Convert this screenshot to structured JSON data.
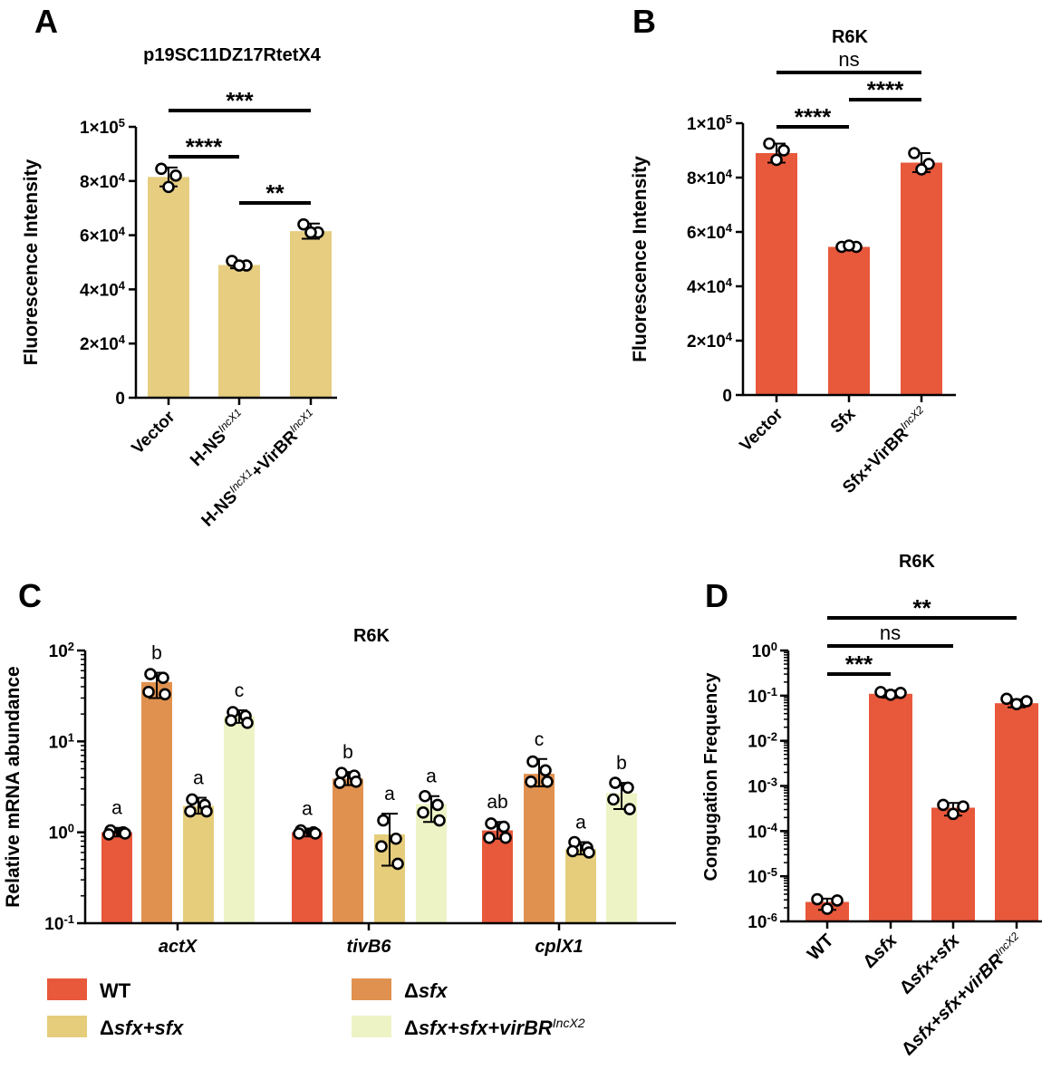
{
  "colors": {
    "panel_a_bar": "#e7cd80",
    "red": "#e8583b",
    "orange": "#e0914f",
    "yellow": "#e6cd7c",
    "light_green": "#eef3c6"
  },
  "chart_data": [
    {
      "panel": "A",
      "type": "bar",
      "title": "p19SC11DZ17RtetX4",
      "ylabel": "Fluorescence Intensity",
      "ylim": [
        0,
        100000
      ],
      "yticks": [
        {
          "v": 0,
          "label": "0"
        },
        {
          "v": 20000,
          "base": "2×10",
          "exp": "4"
        },
        {
          "v": 40000,
          "base": "4×10",
          "exp": "4"
        },
        {
          "v": 60000,
          "base": "6×10",
          "exp": "4"
        },
        {
          "v": 80000,
          "base": "8×10",
          "exp": "4"
        },
        {
          "v": 100000,
          "base": "1×10",
          "exp": "5"
        }
      ],
      "categories": [
        {
          "parts": [
            {
              "t": "Vector"
            }
          ]
        },
        {
          "parts": [
            {
              "t": "H-NS"
            },
            {
              "t": "IncX1",
              "sup": true
            }
          ]
        },
        {
          "parts": [
            {
              "t": "H-NS"
            },
            {
              "t": "IncX1",
              "sup": true
            },
            {
              "t": "+VirBR"
            },
            {
              "t": "IncX1",
              "sup": true
            }
          ]
        }
      ],
      "values": [
        81500,
        49000,
        61500
      ],
      "errors": [
        3500,
        1200,
        2800
      ],
      "points": [
        [
          84500,
          82000,
          77800
        ],
        [
          50500,
          48800,
          48800
        ],
        [
          64000,
          61000,
          61000
        ]
      ],
      "significance": [
        {
          "from": 0,
          "to": 2,
          "label": "***",
          "level": 0
        },
        {
          "from": 0,
          "to": 1,
          "label": "****",
          "level": 1
        },
        {
          "from": 1,
          "to": 2,
          "label": "**",
          "level": 2
        }
      ]
    },
    {
      "panel": "B",
      "type": "bar",
      "title": "R6K",
      "ylabel": "Fluorescence Intensity",
      "ylim": [
        0,
        100000
      ],
      "yticks": [
        {
          "v": 0,
          "label": "0"
        },
        {
          "v": 20000,
          "base": "2×10",
          "exp": "4"
        },
        {
          "v": 40000,
          "base": "4×10",
          "exp": "4"
        },
        {
          "v": 60000,
          "base": "6×10",
          "exp": "4"
        },
        {
          "v": 80000,
          "base": "8×10",
          "exp": "4"
        },
        {
          "v": 100000,
          "base": "1×10",
          "exp": "5"
        }
      ],
      "categories": [
        {
          "parts": [
            {
              "t": "Vector"
            }
          ]
        },
        {
          "parts": [
            {
              "t": "Sfx"
            }
          ]
        },
        {
          "parts": [
            {
              "t": "Sfx+VirBR"
            },
            {
              "t": "IncX2",
              "sup": true
            }
          ]
        }
      ],
      "values": [
        89000,
        54500,
        85500
      ],
      "errors": [
        3500,
        700,
        3500
      ],
      "points": [
        [
          92500,
          90000,
          86500
        ],
        [
          54500,
          54500,
          55000
        ],
        [
          89000,
          85000,
          83000
        ]
      ],
      "significance": [
        {
          "from": 0,
          "to": 2,
          "label": "ns",
          "level": 0
        },
        {
          "from": 1,
          "to": 2,
          "label": "****",
          "level": 1
        },
        {
          "from": 0,
          "to": 1,
          "label": "****",
          "level": 2
        }
      ]
    },
    {
      "panel": "C",
      "type": "bar",
      "title": "R6K",
      "ylabel": "Relative mRNA abundance",
      "yscale": "log",
      "ylim": [
        0.1,
        100
      ],
      "yticks": [
        {
          "v": 0.1,
          "base": "10",
          "exp": "-1"
        },
        {
          "v": 1,
          "base": "10",
          "exp": "0"
        },
        {
          "v": 10,
          "base": "10",
          "exp": "1"
        },
        {
          "v": 100,
          "base": "10",
          "exp": "2"
        }
      ],
      "categories": [
        "actX",
        "tivB6",
        "cplX1"
      ],
      "legend": [
        {
          "parts": [
            {
              "t": "WT"
            }
          ]
        },
        {
          "parts": [
            {
              "t": "Δ"
            },
            {
              "t": "sfx",
              "i": true
            }
          ]
        },
        {
          "parts": [
            {
              "t": "Δ"
            },
            {
              "t": "sfx+sfx",
              "i": true
            }
          ]
        },
        {
          "parts": [
            {
              "t": "Δ"
            },
            {
              "t": "sfx+sfx+virBR",
              "i": true
            },
            {
              "t": "IncX2",
              "sup": true
            }
          ]
        }
      ],
      "series": [
        {
          "name": "WT",
          "values": [
            1.0,
            1.0,
            1.05
          ],
          "err_low": [
            0.9,
            0.9,
            0.85
          ],
          "err_high": [
            1.12,
            1.1,
            1.3
          ],
          "points": [
            [
              1.05,
              1.0,
              0.95,
              0.97
            ],
            [
              1.05,
              1.0,
              0.97,
              0.97
            ],
            [
              1.25,
              1.15,
              0.87,
              0.87
            ]
          ],
          "letters": [
            "a",
            "a",
            "ab"
          ]
        },
        {
          "name": "Δsfx",
          "values": [
            45,
            3.9,
            4.4
          ],
          "err_low": [
            30,
            3.3,
            3.2
          ],
          "err_high": [
            57,
            4.6,
            6.4
          ],
          "points": [
            [
              55,
              50,
              35,
              33
            ],
            [
              4.5,
              4.2,
              3.5,
              3.6
            ],
            [
              6.0,
              4.8,
              3.6,
              3.6
            ]
          ],
          "letters": [
            "b",
            "b",
            "c"
          ]
        },
        {
          "name": "Δsfx+sfx",
          "values": [
            1.95,
            0.95,
            0.65
          ],
          "err_low": [
            1.6,
            0.43,
            0.57
          ],
          "err_high": [
            2.4,
            1.6,
            0.78
          ],
          "points": [
            [
              2.3,
              2.0,
              1.7,
              1.7
            ],
            [
              1.35,
              0.85,
              0.7,
              0.45
            ],
            [
              0.78,
              0.68,
              0.62,
              0.6
            ]
          ],
          "letters": [
            "a",
            "a",
            "a"
          ]
        },
        {
          "name": "Δsfx+sfx+virBR IncX2",
          "values": [
            19,
            2.05,
            2.7
          ],
          "err_low": [
            16,
            1.3,
            1.8
          ],
          "err_high": [
            22,
            2.5,
            3.5
          ],
          "points": [
            [
              21,
              19,
              17,
              16
            ],
            [
              2.5,
              2.0,
              1.65,
              1.35
            ],
            [
              3.5,
              3.1,
              2.3,
              1.8
            ]
          ],
          "letters": [
            "c",
            "a",
            "b"
          ]
        }
      ]
    },
    {
      "panel": "D",
      "type": "bar",
      "title": "R6K",
      "ylabel": "Congugation Frequency",
      "yscale": "log",
      "ylim": [
        1e-06,
        1
      ],
      "yticks": [
        {
          "v": 1e-06,
          "base": "10",
          "exp": "-6"
        },
        {
          "v": 1e-05,
          "base": "10",
          "exp": "-5"
        },
        {
          "v": 0.0001,
          "base": "10",
          "exp": "-4"
        },
        {
          "v": 0.001,
          "base": "10",
          "exp": "-3"
        },
        {
          "v": 0.01,
          "base": "10",
          "exp": "-2"
        },
        {
          "v": 0.1,
          "base": "10",
          "exp": "-1"
        },
        {
          "v": 1,
          "base": "10",
          "exp": "0"
        }
      ],
      "categories": [
        {
          "parts": [
            {
              "t": "WT"
            }
          ]
        },
        {
          "parts": [
            {
              "t": "Δ"
            },
            {
              "t": "sfx",
              "i": true
            }
          ]
        },
        {
          "parts": [
            {
              "t": "Δ"
            },
            {
              "t": "sfx+sfx",
              "i": true
            }
          ]
        },
        {
          "parts": [
            {
              "t": "Δ"
            },
            {
              "t": "sfx+sfx+virBR",
              "i": true
            },
            {
              "t": "IncX2",
              "sup": true
            }
          ]
        }
      ],
      "values": [
        2.7e-06,
        0.11,
        0.00033,
        0.068
      ],
      "err_low": [
        1.8e-06,
        0.09,
        0.00022,
        0.055
      ],
      "err_high": [
        3.2e-06,
        0.13,
        0.00042,
        0.083
      ],
      "points": [
        [
          3.1e-06,
          2.9e-06,
          1.9e-06
        ],
        [
          0.12,
          0.115,
          0.105
        ],
        [
          0.00038,
          0.00035,
          0.00024
        ],
        [
          0.085,
          0.075,
          0.065
        ]
      ],
      "significance": [
        {
          "from": 0,
          "to": 3,
          "label": "**",
          "level": 0
        },
        {
          "from": 0,
          "to": 2,
          "label": "ns",
          "level": 1
        },
        {
          "from": 0,
          "to": 1,
          "label": "***",
          "level": 2
        }
      ]
    }
  ],
  "labels": {
    "a": "A",
    "b": "B",
    "c": "C",
    "d": "D"
  }
}
